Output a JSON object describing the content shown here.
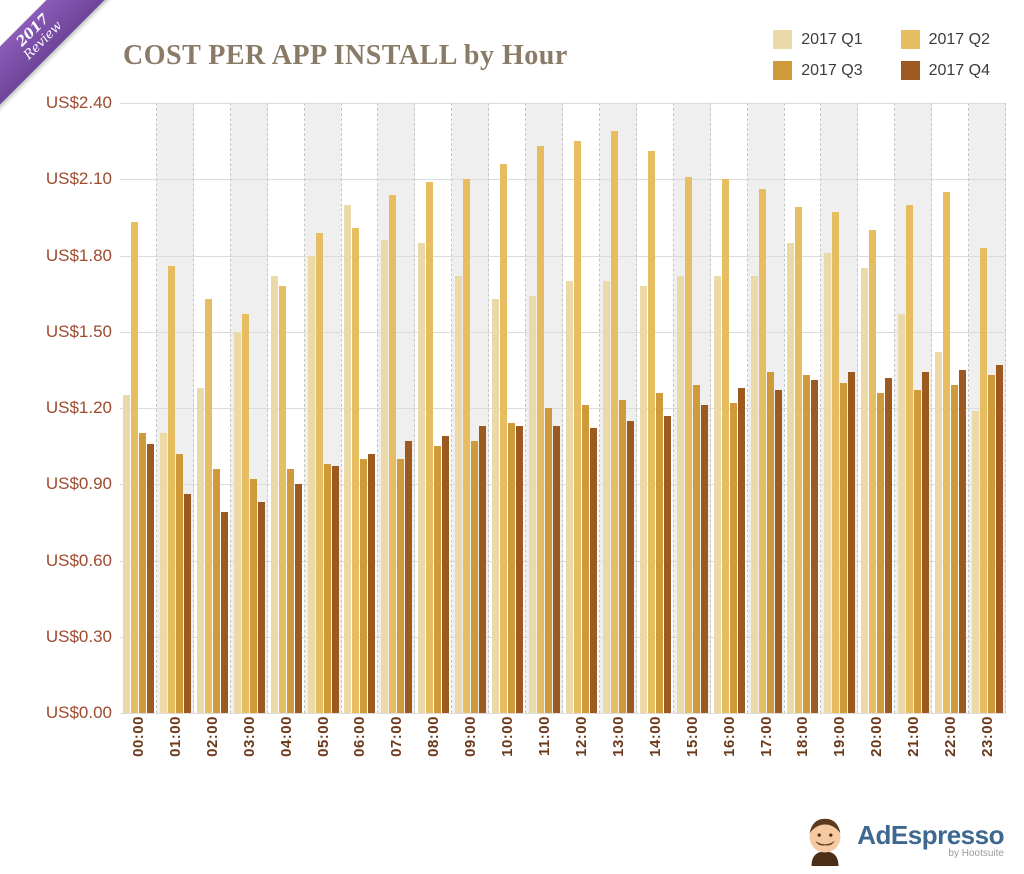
{
  "ribbon": {
    "year": "2017",
    "word": "Review"
  },
  "header": {
    "title": "COST PER APP INSTALL by Hour"
  },
  "legend": {
    "items": [
      {
        "label": "2017 Q1",
        "color": "#ecd9a8"
      },
      {
        "label": "2017 Q2",
        "color": "#e7bd62"
      },
      {
        "label": "2017 Q3",
        "color": "#cf9a3a"
      },
      {
        "label": "2017 Q4",
        "color": "#9c5a21"
      }
    ]
  },
  "footer": {
    "brand": "AdEspresso",
    "byline": "by Hootsuite"
  },
  "chart_data": {
    "type": "bar",
    "title": "COST PER APP INSTALL by Hour",
    "xlabel": "",
    "ylabel": "",
    "currency_prefix": "US$",
    "ylim": [
      0,
      2.4
    ],
    "y_tick_step": 0.3,
    "y_tick_labels": [
      "US$0.00",
      "US$0.30",
      "US$0.60",
      "US$0.90",
      "US$1.20",
      "US$1.50",
      "US$1.80",
      "US$2.10",
      "US$2.40"
    ],
    "grid": true,
    "legend_position": "top-right",
    "categories": [
      "00:00",
      "01:00",
      "02:00",
      "03:00",
      "04:00",
      "05:00",
      "06:00",
      "07:00",
      "08:00",
      "09:00",
      "10:00",
      "11:00",
      "12:00",
      "13:00",
      "14:00",
      "15:00",
      "16:00",
      "17:00",
      "18:00",
      "19:00",
      "20:00",
      "21:00",
      "22:00",
      "23:00"
    ],
    "series": [
      {
        "name": "2017 Q1",
        "color": "#ecd9a8",
        "values": [
          1.25,
          1.1,
          1.28,
          1.5,
          1.72,
          1.8,
          2.0,
          1.86,
          1.85,
          1.72,
          1.63,
          1.64,
          1.7,
          1.7,
          1.68,
          1.72,
          1.72,
          1.72,
          1.85,
          1.81,
          1.75,
          1.57,
          1.42,
          1.19
        ]
      },
      {
        "name": "2017 Q2",
        "color": "#e7bd62",
        "values": [
          1.93,
          1.76,
          1.63,
          1.57,
          1.68,
          1.89,
          1.91,
          2.04,
          2.09,
          2.1,
          2.16,
          2.23,
          2.25,
          2.29,
          2.21,
          2.11,
          2.1,
          2.06,
          1.99,
          1.97,
          1.9,
          2.0,
          2.05,
          1.83
        ]
      },
      {
        "name": "2017 Q3",
        "color": "#cf9a3a",
        "values": [
          1.1,
          1.02,
          0.96,
          0.92,
          0.96,
          0.98,
          1.0,
          1.0,
          1.05,
          1.07,
          1.14,
          1.2,
          1.21,
          1.23,
          1.26,
          1.29,
          1.22,
          1.34,
          1.33,
          1.3,
          1.26,
          1.27,
          1.29,
          1.33
        ]
      },
      {
        "name": "2017 Q4",
        "color": "#9c5a21",
        "values": [
          1.06,
          0.86,
          0.79,
          0.83,
          0.9,
          0.97,
          1.02,
          1.07,
          1.09,
          1.13,
          1.13,
          1.13,
          1.12,
          1.15,
          1.17,
          1.21,
          1.28,
          1.27,
          1.31,
          1.34,
          1.32,
          1.34,
          1.35,
          1.37
        ]
      }
    ]
  }
}
